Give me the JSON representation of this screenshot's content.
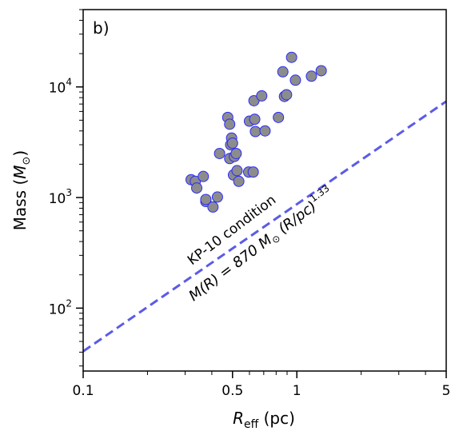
{
  "chart_data": {
    "type": "scatter",
    "panel_label": "b)",
    "xlabel": {
      "main": "R",
      "sub": "eff",
      "rest": " (pc)"
    },
    "ylabel": {
      "main": "Mass (",
      "italic": "M",
      "sym": "⊙",
      "close": ")"
    },
    "x_scale": "log",
    "y_scale": "log",
    "xlim": [
      0.1,
      5
    ],
    "ylim": [
      27,
      50000
    ],
    "x_ticks": [
      {
        "value": 0.1,
        "label": "0.1"
      },
      {
        "value": 0.5,
        "label": "0.5"
      },
      {
        "value": 1,
        "label": "1"
      },
      {
        "value": 5,
        "label": "5"
      }
    ],
    "y_ticks": [
      {
        "value": 100,
        "base": "10",
        "exp": "2"
      },
      {
        "value": 1000,
        "base": "10",
        "exp": "3"
      },
      {
        "value": 10000,
        "base": "10",
        "exp": "4"
      }
    ],
    "grid": false,
    "marker_fill": "#8c8c8c",
    "marker_edge": "#2b2bff",
    "line_color": "#5b5be6",
    "points": [
      {
        "x": 0.32,
        "y": 1450
      },
      {
        "x": 0.335,
        "y": 1400
      },
      {
        "x": 0.34,
        "y": 1220
      },
      {
        "x": 0.365,
        "y": 1550
      },
      {
        "x": 0.375,
        "y": 920
      },
      {
        "x": 0.375,
        "y": 960
      },
      {
        "x": 0.405,
        "y": 820
      },
      {
        "x": 0.425,
        "y": 1010
      },
      {
        "x": 0.435,
        "y": 2500
      },
      {
        "x": 0.475,
        "y": 5300
      },
      {
        "x": 0.485,
        "y": 4600
      },
      {
        "x": 0.485,
        "y": 2250
      },
      {
        "x": 0.49,
        "y": 3000
      },
      {
        "x": 0.495,
        "y": 3450
      },
      {
        "x": 0.5,
        "y": 3100
      },
      {
        "x": 0.505,
        "y": 1600
      },
      {
        "x": 0.51,
        "y": 2350
      },
      {
        "x": 0.52,
        "y": 2500
      },
      {
        "x": 0.525,
        "y": 1750
      },
      {
        "x": 0.535,
        "y": 1400
      },
      {
        "x": 0.595,
        "y": 1700
      },
      {
        "x": 0.6,
        "y": 4900
      },
      {
        "x": 0.625,
        "y": 1700
      },
      {
        "x": 0.63,
        "y": 7500
      },
      {
        "x": 0.635,
        "y": 5100
      },
      {
        "x": 0.64,
        "y": 3950
      },
      {
        "x": 0.685,
        "y": 8300
      },
      {
        "x": 0.71,
        "y": 4000
      },
      {
        "x": 0.82,
        "y": 5300
      },
      {
        "x": 0.86,
        "y": 13700
      },
      {
        "x": 0.875,
        "y": 8200
      },
      {
        "x": 0.895,
        "y": 8500
      },
      {
        "x": 0.945,
        "y": 18500
      },
      {
        "x": 0.985,
        "y": 11500
      },
      {
        "x": 1.17,
        "y": 12500
      },
      {
        "x": 1.3,
        "y": 14000
      }
    ],
    "relation": {
      "coef": 870,
      "exp": 1.33,
      "label_top": "KP-10 condition",
      "label_formula": {
        "lhs": "M(R) = 870",
        "space": " ",
        "m": "M",
        "sym": "⊙",
        "mid": " (R/pc)",
        "exp": "1.33"
      }
    }
  }
}
